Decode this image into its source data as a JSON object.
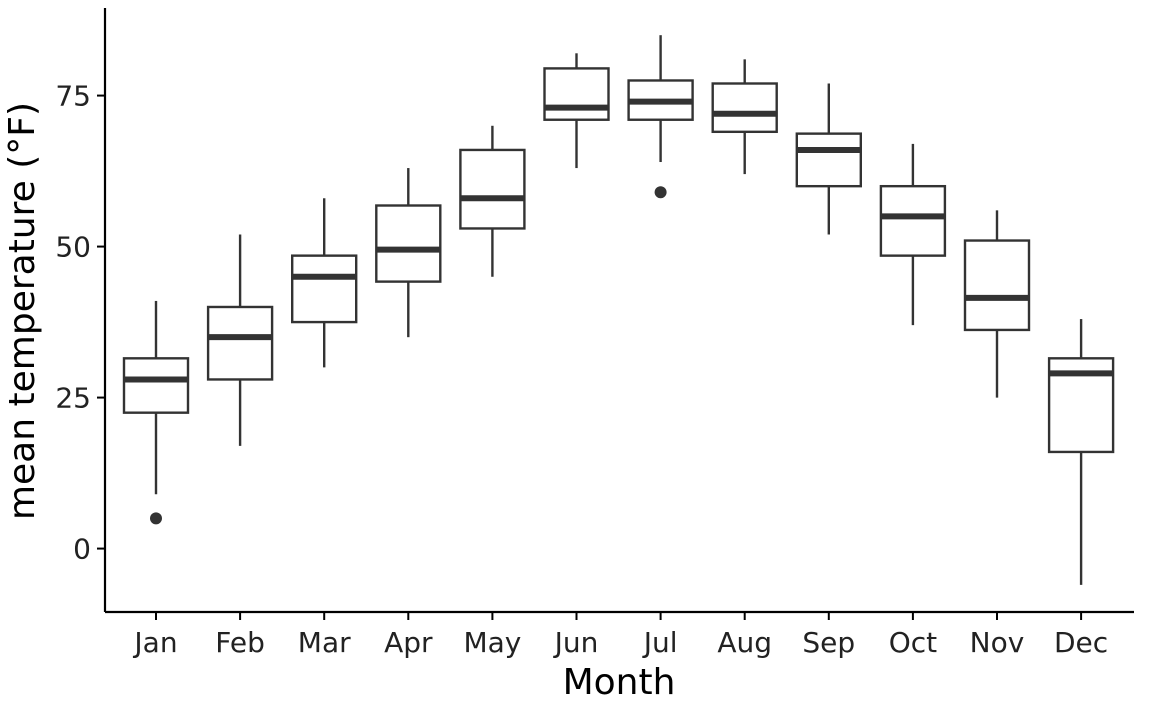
{
  "chart_data": {
    "type": "boxplot",
    "xlabel": "Month",
    "ylabel": "mean temperature (°F)",
    "ylim": [
      -10.5,
      89.5
    ],
    "yticks": [
      0,
      25,
      50,
      75
    ],
    "grid": false,
    "colors": {
      "box_stroke": "#333333",
      "box_fill": "#ffffff",
      "axis": "#000000"
    },
    "categories": [
      "Jan",
      "Feb",
      "Mar",
      "Apr",
      "May",
      "Jun",
      "Jul",
      "Aug",
      "Sep",
      "Oct",
      "Nov",
      "Dec"
    ],
    "boxes": [
      {
        "min": 9,
        "q1": 22.5,
        "median": 28,
        "q3": 31.5,
        "max": 41,
        "outliers": [
          5
        ]
      },
      {
        "min": 17,
        "q1": 28,
        "median": 35,
        "q3": 40,
        "max": 52,
        "outliers": []
      },
      {
        "min": 30,
        "q1": 37.5,
        "median": 45,
        "q3": 48.5,
        "max": 58,
        "outliers": []
      },
      {
        "min": 35,
        "q1": 44.2,
        "median": 49.5,
        "q3": 56.8,
        "max": 63,
        "outliers": []
      },
      {
        "min": 45,
        "q1": 53,
        "median": 58,
        "q3": 66,
        "max": 70,
        "outliers": []
      },
      {
        "min": 63,
        "q1": 71,
        "median": 73,
        "q3": 79.5,
        "max": 82,
        "outliers": []
      },
      {
        "min": 64,
        "q1": 71,
        "median": 74,
        "q3": 77.5,
        "max": 85,
        "outliers": [
          59
        ]
      },
      {
        "min": 62,
        "q1": 69,
        "median": 72,
        "q3": 77,
        "max": 81,
        "outliers": []
      },
      {
        "min": 52,
        "q1": 60,
        "median": 66,
        "q3": 68.7,
        "max": 77,
        "outliers": []
      },
      {
        "min": 37,
        "q1": 48.5,
        "median": 55,
        "q3": 60,
        "max": 67,
        "outliers": []
      },
      {
        "min": 25,
        "q1": 36.2,
        "median": 41.5,
        "q3": 51,
        "max": 56,
        "outliers": []
      },
      {
        "min": -6,
        "q1": 16,
        "median": 29,
        "q3": 31.5,
        "max": 38,
        "outliers": []
      }
    ]
  }
}
